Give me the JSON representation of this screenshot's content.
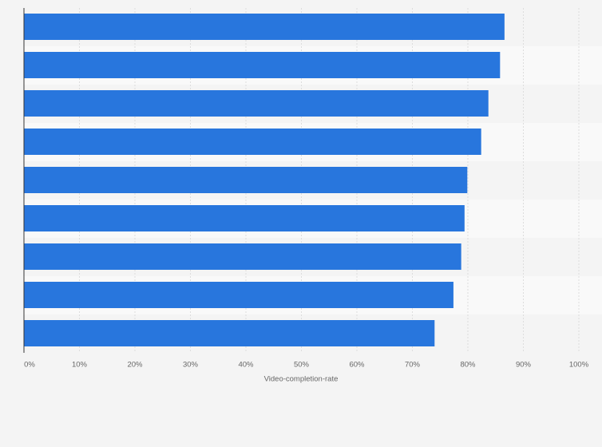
{
  "chart_data": {
    "type": "bar",
    "orientation": "horizontal",
    "x_label": "Video-completion-rate",
    "categories": [
      null,
      null,
      null,
      null,
      null,
      null,
      null,
      null,
      null
    ],
    "values": [
      86.6,
      85.8,
      83.7,
      82.4,
      79.9,
      79.4,
      78.8,
      77.4,
      74.0
    ],
    "color": "#2876dd",
    "xlim": [
      0,
      100
    ],
    "xticks": [
      {
        "value": 0,
        "label": "0%"
      },
      {
        "value": 10,
        "label": "10%"
      },
      {
        "value": 20,
        "label": "20%"
      },
      {
        "value": 30,
        "label": "30%"
      },
      {
        "value": 40,
        "label": "40%"
      },
      {
        "value": 50,
        "label": "50%"
      },
      {
        "value": 60,
        "label": "60%"
      },
      {
        "value": 70,
        "label": "70%"
      },
      {
        "value": 80,
        "label": "80%"
      },
      {
        "value": 90,
        "label": "90%"
      },
      {
        "value": 100,
        "label": "100%"
      }
    ],
    "grid": true
  }
}
